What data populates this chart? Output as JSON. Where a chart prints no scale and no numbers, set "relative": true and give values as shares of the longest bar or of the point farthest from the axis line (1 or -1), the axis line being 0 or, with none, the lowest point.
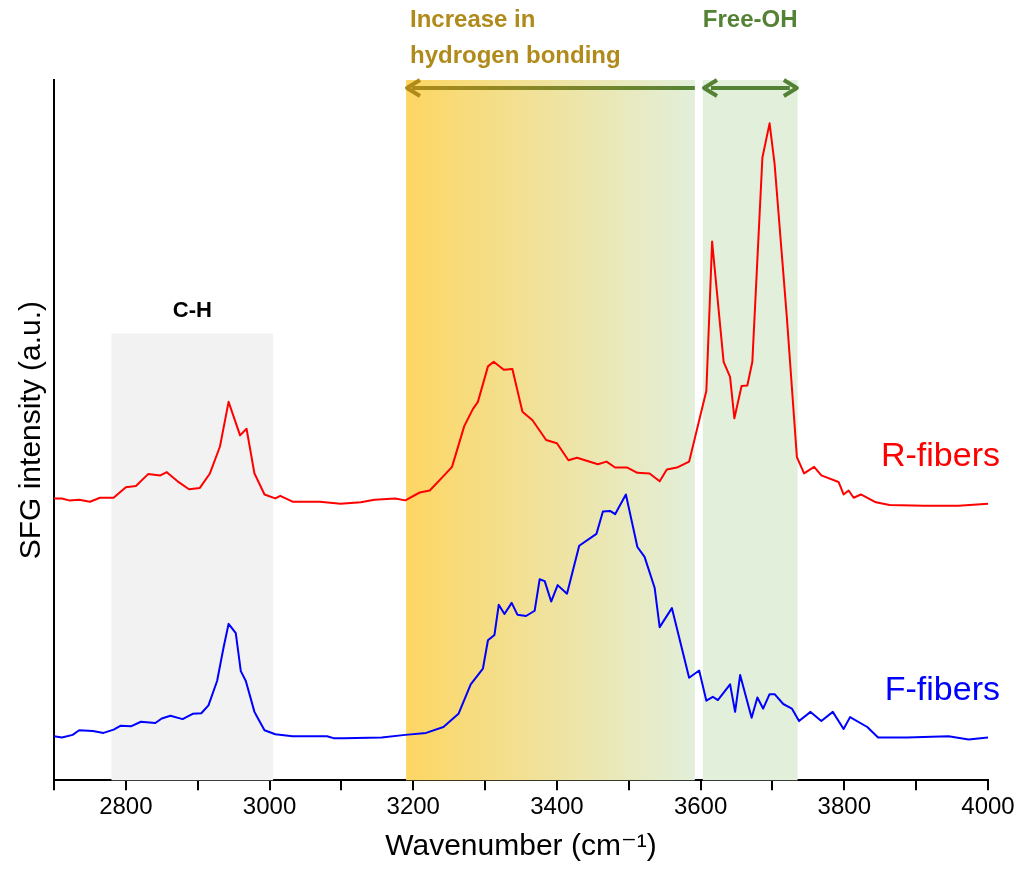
{
  "chart_data": {
    "type": "line",
    "relative": true,
    "xlabel": "Wavenumber (cm⁻¹)",
    "ylabel": "SFG intensity (a.u.)",
    "xlim": [
      2700,
      4000
    ],
    "xticks": [
      {
        "value": 2700,
        "label": null
      },
      2800,
      {
        "value": 2900,
        "label": null
      },
      3000,
      {
        "value": 3100,
        "label": null
      },
      3200,
      {
        "value": 3300,
        "label": null
      },
      3400,
      {
        "value": 3500,
        "label": null
      },
      3600,
      {
        "value": 3700,
        "label": null
      },
      3800,
      {
        "value": 3900,
        "label": null
      },
      4000
    ],
    "grid": false,
    "legend": false,
    "marker": "none",
    "line_style": "solid",
    "bands": [
      {
        "axis": "x",
        "from": 2780,
        "to": 3005,
        "label": "C-H",
        "color": "#f2f2f2"
      },
      {
        "axis": "x",
        "from": 3190,
        "to": 3592,
        "label": "Increase in hydrogen bonding",
        "color": "#fdd663"
      },
      {
        "axis": "x",
        "from": 3603,
        "to": 3735,
        "label": "Free-OH",
        "color": "#e2efda"
      }
    ],
    "series": [
      {
        "name": "R-fibers",
        "color": "#ff0000",
        "x": [
          2700,
          2711,
          2721,
          2735,
          2750,
          2764,
          2783,
          2800,
          2814,
          2831,
          2848,
          2857,
          2872,
          2888,
          2903,
          2917,
          2931,
          2943,
          2959,
          2968,
          2979,
          2993,
          3008,
          3015,
          3032,
          3070,
          3099,
          3127,
          3146,
          3175,
          3189,
          3209,
          3223,
          3242,
          3254,
          3271,
          3283,
          3290,
          3304,
          3312,
          3326,
          3338,
          3352,
          3366,
          3385,
          3400,
          3416,
          3428,
          3457,
          3469,
          3481,
          3498,
          3512,
          3529,
          3543,
          3553,
          3567,
          3584,
          3596,
          3608,
          3616,
          3632,
          3641,
          3647,
          3657,
          3665,
          3672,
          3686,
          3696,
          3703,
          3720,
          3734,
          3744,
          3758,
          3768,
          3792,
          3799,
          3806,
          3813,
          3823,
          3844,
          3863,
          3911,
          3959,
          4000
        ],
        "values": [
          0.429,
          0.429,
          0.426,
          0.427,
          0.424,
          0.43,
          0.43,
          0.446,
          0.448,
          0.466,
          0.464,
          0.469,
          0.455,
          0.443,
          0.445,
          0.467,
          0.508,
          0.576,
          0.525,
          0.535,
          0.467,
          0.435,
          0.429,
          0.433,
          0.424,
          0.424,
          0.421,
          0.423,
          0.427,
          0.429,
          0.426,
          0.438,
          0.441,
          0.463,
          0.477,
          0.539,
          0.565,
          0.576,
          0.63,
          0.637,
          0.625,
          0.626,
          0.561,
          0.548,
          0.518,
          0.513,
          0.487,
          0.491,
          0.481,
          0.485,
          0.476,
          0.476,
          0.468,
          0.467,
          0.455,
          0.473,
          0.476,
          0.485,
          0.539,
          0.593,
          0.82,
          0.637,
          0.614,
          0.551,
          0.6,
          0.601,
          0.637,
          0.948,
          1,
          0.938,
          0.705,
          0.492,
          0.467,
          0.477,
          0.464,
          0.454,
          0.435,
          0.441,
          0.43,
          0.435,
          0.423,
          0.419,
          0.418,
          0.418,
          0.421
        ]
      },
      {
        "name": "F-fibers",
        "color": "#0000ff",
        "x": [
          2700,
          2711,
          2726,
          2735,
          2754,
          2769,
          2783,
          2793,
          2807,
          2821,
          2841,
          2850,
          2862,
          2879,
          2893,
          2905,
          2915,
          2927,
          2936,
          2943,
          2953,
          2960,
          2967,
          2979,
          2993,
          3008,
          3032,
          3080,
          3089,
          3103,
          3156,
          3189,
          3218,
          3242,
          3263,
          3280,
          3297,
          3304,
          3313,
          3319,
          3327,
          3337,
          3345,
          3357,
          3369,
          3376,
          3383,
          3392,
          3401,
          3414,
          3431,
          3455,
          3464,
          3474,
          3481,
          3496,
          3512,
          3522,
          3536,
          3543,
          3560,
          3584,
          3598,
          3608,
          3617,
          3624,
          3641,
          3648,
          3655,
          3671,
          3679,
          3687,
          3696,
          3703,
          3715,
          3727,
          3737,
          3753,
          3768,
          3784,
          3799,
          3808,
          3832,
          3847,
          3887,
          3945,
          3973,
          4000
        ],
        "values": [
          0.067,
          0.065,
          0.069,
          0.076,
          0.075,
          0.072,
          0.077,
          0.083,
          0.082,
          0.089,
          0.087,
          0.094,
          0.098,
          0.093,
          0.101,
          0.102,
          0.114,
          0.151,
          0.202,
          0.238,
          0.224,
          0.166,
          0.151,
          0.104,
          0.076,
          0.07,
          0.067,
          0.067,
          0.064,
          0.064,
          0.065,
          0.069,
          0.072,
          0.081,
          0.101,
          0.146,
          0.17,
          0.213,
          0.221,
          0.267,
          0.253,
          0.27,
          0.252,
          0.25,
          0.258,
          0.306,
          0.303,
          0.272,
          0.297,
          0.284,
          0.357,
          0.375,
          0.409,
          0.41,
          0.405,
          0.435,
          0.355,
          0.34,
          0.293,
          0.233,
          0.262,
          0.156,
          0.167,
          0.121,
          0.127,
          0.122,
          0.146,
          0.104,
          0.16,
          0.095,
          0.126,
          0.109,
          0.131,
          0.131,
          0.116,
          0.109,
          0.09,
          0.104,
          0.09,
          0.104,
          0.078,
          0.096,
          0.081,
          0.065,
          0.065,
          0.067,
          0.062,
          0.065
        ]
      }
    ]
  }
}
